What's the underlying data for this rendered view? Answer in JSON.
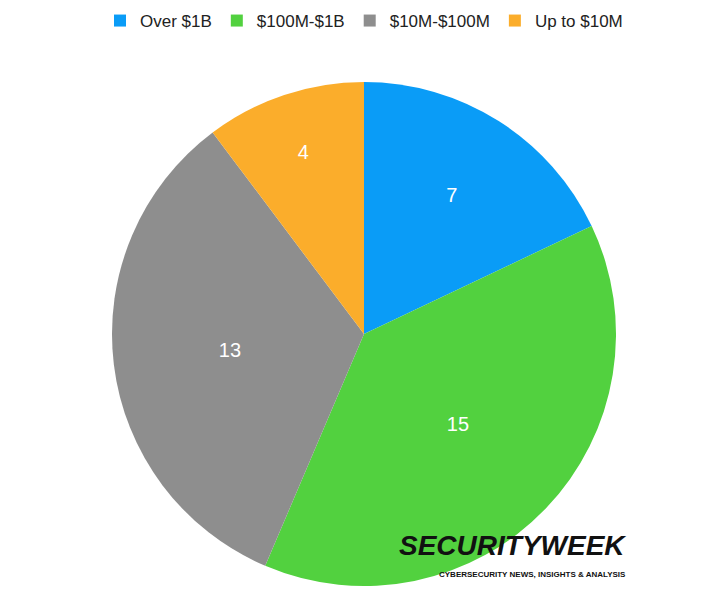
{
  "chart_data": {
    "type": "pie",
    "categories": [
      "Over $1B",
      "$100M-$1B",
      "$10M-$100M",
      "Up to $10M"
    ],
    "values": [
      7,
      15,
      13,
      4
    ],
    "colors": [
      "#0a9cf7",
      "#52d13f",
      "#8e8e8e",
      "#fbad2b"
    ],
    "data_labels": true,
    "legend": "top",
    "annotations": [
      "SECURITYWEEK",
      "CYBERSECURITY NEWS, INSIGHTS & ANALYSIS"
    ]
  }
}
